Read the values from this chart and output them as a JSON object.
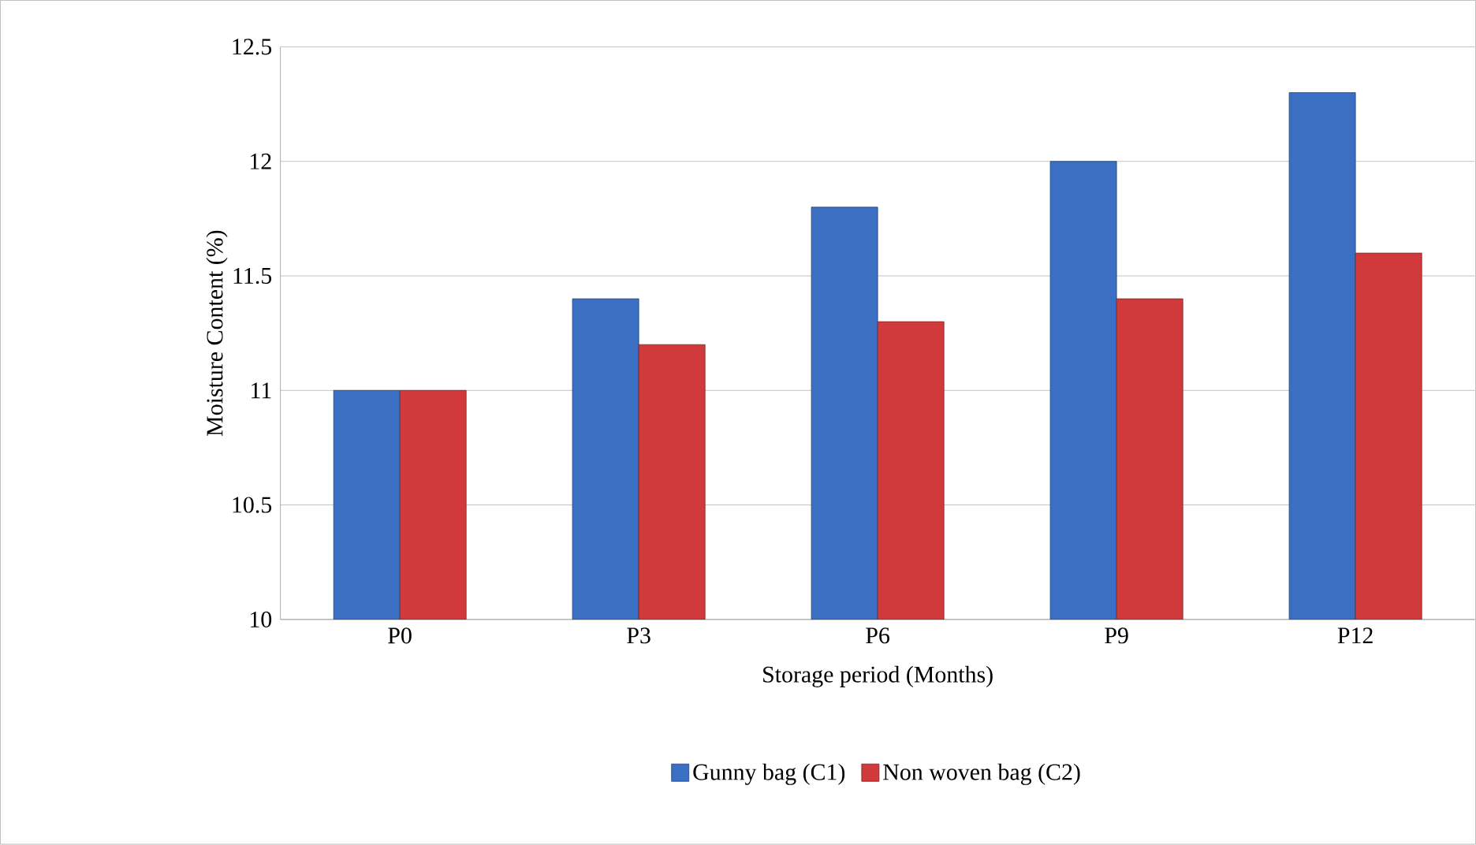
{
  "chart_data": {
    "type": "bar",
    "xlabel": "Storage period (Months)",
    "ylabel": "Moisture Content (%)",
    "categories": [
      "P0",
      "P3",
      "P6",
      "P9",
      "P12"
    ],
    "series": [
      {
        "name": "Gunny bag (C1)",
        "color": "#3a6fc4",
        "values": [
          11,
          11.4,
          11.8,
          12,
          12.3
        ]
      },
      {
        "name": "Non woven bag (C2)",
        "color": "#d03a3a",
        "values": [
          11,
          11.2,
          11.3,
          11.4,
          11.6
        ]
      }
    ],
    "ylim": [
      10,
      12.5
    ],
    "yticks": [
      10,
      10.5,
      11,
      11.5,
      12,
      12.5
    ],
    "grid": "y",
    "legend": "bottom"
  }
}
